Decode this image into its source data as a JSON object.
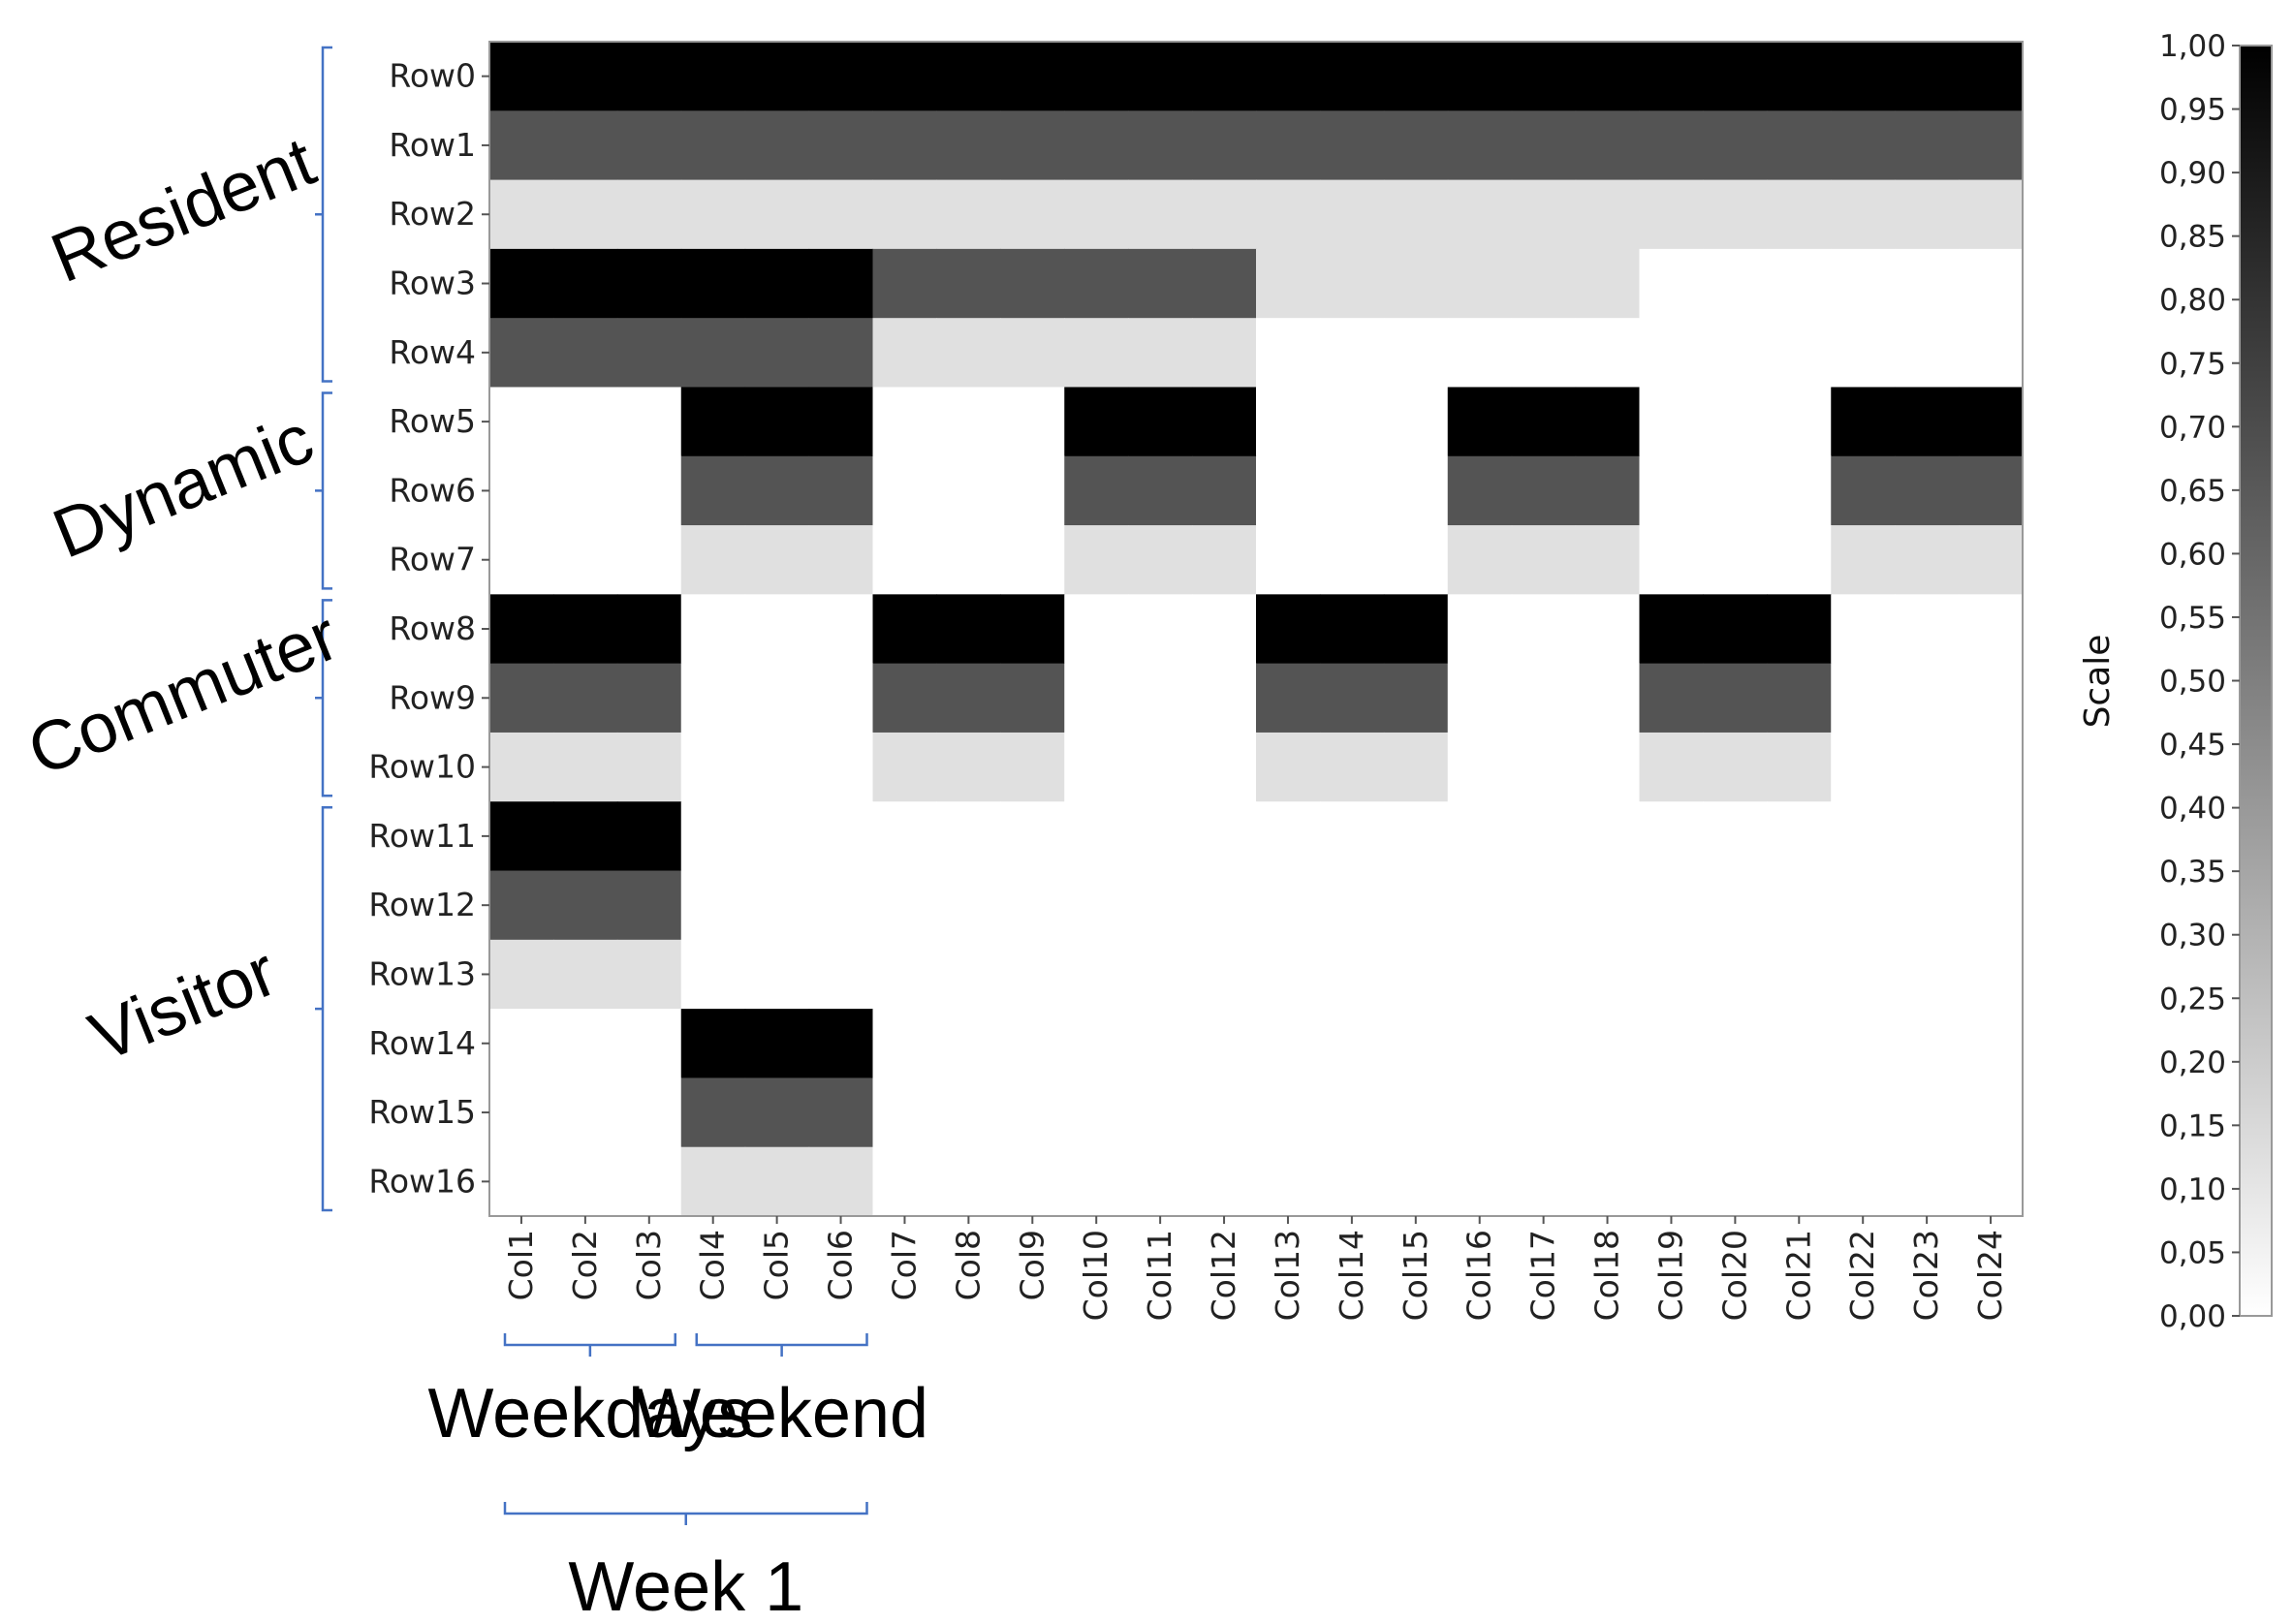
{
  "chart_data": {
    "type": "heatmap",
    "rows": [
      "Row0",
      "Row1",
      "Row2",
      "Row3",
      "Row4",
      "Row5",
      "Row6",
      "Row7",
      "Row8",
      "Row9",
      "Row10",
      "Row11",
      "Row12",
      "Row13",
      "Row14",
      "Row15",
      "Row16"
    ],
    "columns": [
      "Col1",
      "Col2",
      "Col3",
      "Col4",
      "Col5",
      "Col6",
      "Col7",
      "Col8",
      "Col9",
      "Col10",
      "Col11",
      "Col12",
      "Col13",
      "Col14",
      "Col15",
      "Col16",
      "Col17",
      "Col18",
      "Col19",
      "Col20",
      "Col21",
      "Col22",
      "Col23",
      "Col24"
    ],
    "values": [
      [
        1,
        1,
        1,
        1,
        1,
        1,
        1,
        1,
        1,
        1,
        1,
        1,
        1,
        1,
        1,
        1,
        1,
        1,
        1,
        1,
        1,
        1,
        1,
        1
      ],
      [
        0.67,
        0.67,
        0.67,
        0.67,
        0.67,
        0.67,
        0.67,
        0.67,
        0.67,
        0.67,
        0.67,
        0.67,
        0.67,
        0.67,
        0.67,
        0.67,
        0.67,
        0.67,
        0.67,
        0.67,
        0.67,
        0.67,
        0.67,
        0.67
      ],
      [
        0.12,
        0.12,
        0.12,
        0.12,
        0.12,
        0.12,
        0.12,
        0.12,
        0.12,
        0.12,
        0.12,
        0.12,
        0.12,
        0.12,
        0.12,
        0.12,
        0.12,
        0.12,
        0.12,
        0.12,
        0.12,
        0.12,
        0.12,
        0.12
      ],
      [
        1,
        1,
        1,
        1,
        1,
        1,
        0.67,
        0.67,
        0.67,
        0.67,
        0.67,
        0.67,
        0.12,
        0.12,
        0.12,
        0.12,
        0.12,
        0.12,
        0,
        0,
        0,
        0,
        0,
        0
      ],
      [
        0.67,
        0.67,
        0.67,
        0.67,
        0.67,
        0.67,
        0.12,
        0.12,
        0.12,
        0.12,
        0.12,
        0.12,
        0,
        0,
        0,
        0,
        0,
        0,
        0,
        0,
        0,
        0,
        0,
        0
      ],
      [
        0,
        0,
        0,
        1,
        1,
        1,
        0,
        0,
        0,
        1,
        1,
        1,
        0,
        0,
        0,
        1,
        1,
        1,
        0,
        0,
        0,
        1,
        1,
        1
      ],
      [
        0,
        0,
        0,
        0.67,
        0.67,
        0.67,
        0,
        0,
        0,
        0.67,
        0.67,
        0.67,
        0,
        0,
        0,
        0.67,
        0.67,
        0.67,
        0,
        0,
        0,
        0.67,
        0.67,
        0.67
      ],
      [
        0,
        0,
        0,
        0.12,
        0.12,
        0.12,
        0,
        0,
        0,
        0.12,
        0.12,
        0.12,
        0,
        0,
        0,
        0.12,
        0.12,
        0.12,
        0,
        0,
        0,
        0.12,
        0.12,
        0.12
      ],
      [
        1,
        1,
        1,
        0,
        0,
        0,
        1,
        1,
        1,
        0,
        0,
        0,
        1,
        1,
        1,
        0,
        0,
        0,
        1,
        1,
        1,
        0,
        0,
        0
      ],
      [
        0.67,
        0.67,
        0.67,
        0,
        0,
        0,
        0.67,
        0.67,
        0.67,
        0,
        0,
        0,
        0.67,
        0.67,
        0.67,
        0,
        0,
        0,
        0.67,
        0.67,
        0.67,
        0,
        0,
        0
      ],
      [
        0.12,
        0.12,
        0.12,
        0,
        0,
        0,
        0.12,
        0.12,
        0.12,
        0,
        0,
        0,
        0.12,
        0.12,
        0.12,
        0,
        0,
        0,
        0.12,
        0.12,
        0.12,
        0,
        0,
        0
      ],
      [
        1,
        1,
        1,
        0,
        0,
        0,
        0,
        0,
        0,
        0,
        0,
        0,
        0,
        0,
        0,
        0,
        0,
        0,
        0,
        0,
        0,
        0,
        0,
        0
      ],
      [
        0.67,
        0.67,
        0.67,
        0,
        0,
        0,
        0,
        0,
        0,
        0,
        0,
        0,
        0,
        0,
        0,
        0,
        0,
        0,
        0,
        0,
        0,
        0,
        0,
        0
      ],
      [
        0.12,
        0.12,
        0.12,
        0,
        0,
        0,
        0,
        0,
        0,
        0,
        0,
        0,
        0,
        0,
        0,
        0,
        0,
        0,
        0,
        0,
        0,
        0,
        0,
        0
      ],
      [
        0,
        0,
        0,
        1,
        1,
        1,
        0,
        0,
        0,
        0,
        0,
        0,
        0,
        0,
        0,
        0,
        0,
        0,
        0,
        0,
        0,
        0,
        0,
        0
      ],
      [
        0,
        0,
        0,
        0.67,
        0.67,
        0.67,
        0,
        0,
        0,
        0,
        0,
        0,
        0,
        0,
        0,
        0,
        0,
        0,
        0,
        0,
        0,
        0,
        0,
        0
      ],
      [
        0,
        0,
        0,
        0.12,
        0.12,
        0.12,
        0,
        0,
        0,
        0,
        0,
        0,
        0,
        0,
        0,
        0,
        0,
        0,
        0,
        0,
        0,
        0,
        0,
        0
      ]
    ],
    "colormap": {
      "low": "#ffffff",
      "high": "#000000"
    },
    "colorbar": {
      "label": "Scale",
      "range": [
        0,
        1
      ],
      "ticks": [
        "0,00",
        "0,05",
        "0,10",
        "0,15",
        "0,20",
        "0,25",
        "0,30",
        "0,35",
        "0,40",
        "0,45",
        "0,50",
        "0,55",
        "0,60",
        "0,65",
        "0,70",
        "0,75",
        "0,80",
        "0,85",
        "0,90",
        "0,95",
        "1,00"
      ]
    },
    "row_groups": [
      {
        "label": "Resident",
        "first_row": 0,
        "last_row": 4
      },
      {
        "label": "Dynamic",
        "first_row": 5,
        "last_row": 7
      },
      {
        "label": "Commuter",
        "first_row": 8,
        "last_row": 10
      },
      {
        "label": "Visitor",
        "first_row": 11,
        "last_row": 16
      }
    ],
    "column_groups": [
      {
        "label": "Weekdays",
        "first_col": 0,
        "last_col": 2,
        "level": 1
      },
      {
        "label": "Weekend",
        "first_col": 3,
        "last_col": 5,
        "level": 1
      },
      {
        "label": "Week 1",
        "first_col": 0,
        "last_col": 5,
        "level": 2
      }
    ],
    "bracket_color": "#4472c4"
  }
}
